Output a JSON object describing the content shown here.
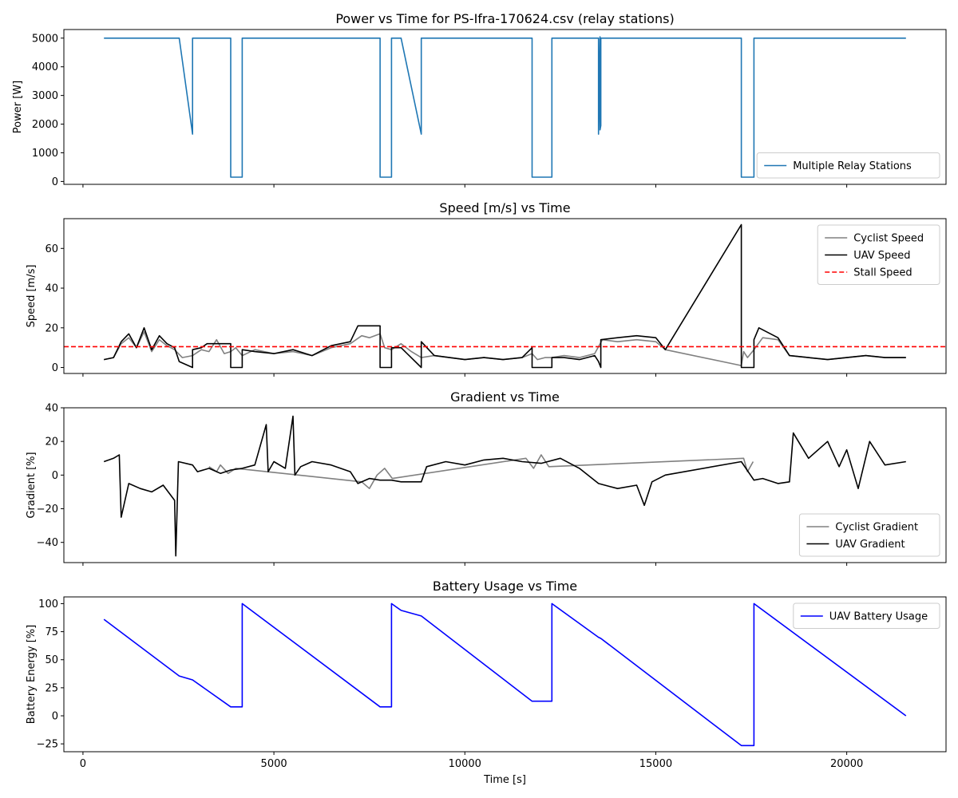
{
  "chart_data": [
    {
      "type": "line",
      "title": "Power vs Time for PS-Ifra-170624.csv (relay stations)",
      "xlabel": "",
      "ylabel": "Power [W]",
      "xlim": [
        -500,
        22600
      ],
      "ylim": [
        -100,
        5300
      ],
      "xticks": [
        0,
        5000,
        10000,
        15000,
        20000
      ],
      "show_xticklabels": false,
      "yticks": [
        0,
        1000,
        2000,
        3000,
        4000,
        5000
      ],
      "legend": "lower right",
      "series": [
        {
          "name": "Multiple Relay Stations",
          "color": "#1f77b4",
          "x": [
            550,
            2520,
            2870,
            2870,
            3870,
            3870,
            4170,
            4170,
            7780,
            7780,
            8080,
            8080,
            8330,
            8860,
            8860,
            11760,
            11760,
            12280,
            12280,
            13500,
            13500,
            13540,
            13540,
            13560,
            13560,
            17240,
            17240,
            17570,
            17570,
            21550
          ],
          "y": [
            5000,
            5000,
            1650,
            5000,
            5000,
            150,
            150,
            5000,
            5000,
            150,
            150,
            5000,
            5000,
            1650,
            5000,
            5000,
            150,
            150,
            5000,
            5000,
            1650,
            5050,
            1800,
            1950,
            5000,
            5000,
            150,
            150,
            5000,
            5000
          ]
        }
      ]
    },
    {
      "type": "line",
      "title": "Speed [m/s] vs Time",
      "xlabel": "",
      "ylabel": "Speed [m/s]",
      "xlim": [
        -500,
        22600
      ],
      "ylim": [
        -3,
        75
      ],
      "xticks": [
        0,
        5000,
        10000,
        15000,
        20000
      ],
      "show_xticklabels": false,
      "yticks": [
        0,
        20,
        40,
        60
      ],
      "legend": "upper right",
      "series": [
        {
          "name": "Cyclist Speed",
          "color": "#808080",
          "x": [
            550,
            800,
            1000,
            1200,
            1400,
            1600,
            1800,
            2000,
            2200,
            2400,
            2600,
            2870,
            3100,
            3300,
            3500,
            3700,
            3870,
            4000,
            4170,
            4500,
            5000,
            5500,
            6000,
            6500,
            7000,
            7300,
            7500,
            7780,
            7900,
            8080,
            8330,
            8600,
            8860,
            9200,
            9600,
            10000,
            10500,
            11000,
            11500,
            11760,
            11900,
            12100,
            12280,
            12600,
            13000,
            13400,
            13600,
            14000,
            14500,
            15000,
            15250,
            17240,
            17300,
            17400,
            17570,
            17800,
            18200,
            18500,
            19000,
            19500,
            20000,
            20500,
            21000,
            21550
          ],
          "y": [
            4,
            5,
            12,
            15,
            10,
            18,
            8,
            14,
            11,
            9,
            5,
            6,
            9,
            8,
            14,
            7,
            8,
            10,
            6,
            9,
            7,
            8,
            6,
            10,
            12,
            16,
            15,
            17,
            10,
            9,
            12,
            8,
            5,
            6,
            5,
            4,
            5,
            4,
            5,
            7,
            4,
            5,
            5,
            6,
            5,
            7,
            14,
            13,
            14,
            13,
            9,
            1,
            8,
            5,
            9,
            15,
            14,
            6,
            5,
            4,
            5,
            6,
            5,
            5
          ]
        },
        {
          "name": "UAV Speed",
          "color": "#000000",
          "x": [
            550,
            800,
            1000,
            1200,
            1400,
            1600,
            1800,
            2000,
            2200,
            2400,
            2520,
            2870,
            2870,
            3100,
            3250,
            3870,
            3870,
            4170,
            4170,
            4500,
            5000,
            5500,
            6000,
            6500,
            7000,
            7200,
            7300,
            7780,
            7780,
            8080,
            8080,
            8330,
            8860,
            8860,
            9200,
            9600,
            10000,
            10500,
            11000,
            11500,
            11760,
            11760,
            12280,
            12280,
            12600,
            13000,
            13400,
            13500,
            13560,
            13560,
            14000,
            14500,
            15000,
            15250,
            17240,
            17240,
            17570,
            17570,
            17700,
            18200,
            18500,
            19000,
            19500,
            20000,
            20500,
            21000,
            21550
          ],
          "y": [
            4,
            5,
            13,
            17,
            10,
            20,
            9,
            16,
            12,
            10,
            3,
            0,
            9,
            10,
            12,
            12,
            0,
            0,
            9,
            8,
            7,
            9,
            6,
            11,
            13,
            21,
            21,
            21,
            0,
            0,
            10,
            10,
            0,
            13,
            6,
            5,
            4,
            5,
            4,
            5,
            10,
            0,
            0,
            5,
            5,
            4,
            6,
            3,
            0,
            14,
            15,
            16,
            15,
            9,
            72,
            0,
            0,
            14,
            20,
            15,
            6,
            5,
            4,
            5,
            6,
            5,
            5
          ]
        },
        {
          "name": "Stall Speed",
          "color": "#ff0000",
          "dashed": true,
          "hline": 10.5
        }
      ]
    },
    {
      "type": "line",
      "title": "Gradient vs Time",
      "xlabel": "",
      "ylabel": "Gradient [%]",
      "xlim": [
        -500,
        22600
      ],
      "ylim": [
        -52,
        40
      ],
      "xticks": [
        0,
        5000,
        10000,
        15000,
        20000
      ],
      "show_xticklabels": false,
      "yticks": [
        -40,
        -20,
        0,
        20,
        40
      ],
      "legend": "lower right",
      "series": [
        {
          "name": "Cyclist Gradient",
          "color": "#808080",
          "x": [
            3300,
            3500,
            3600,
            3800,
            4000,
            7300,
            7500,
            7700,
            7900,
            8100,
            11600,
            11800,
            12000,
            12200,
            17300,
            17400,
            17550
          ],
          "y": [
            5,
            2,
            6,
            1,
            4,
            -4,
            -8,
            0,
            4,
            -2,
            10,
            4,
            12,
            5,
            10,
            2,
            8
          ]
        },
        {
          "name": "UAV Gradient",
          "color": "#000000",
          "x": [
            550,
            800,
            950,
            1000,
            1200,
            1500,
            1800,
            2100,
            2400,
            2430,
            2500,
            2870,
            3000,
            3300,
            3600,
            3870,
            4170,
            4500,
            4800,
            4850,
            5000,
            5300,
            5500,
            5550,
            5700,
            6000,
            6500,
            7000,
            7200,
            7500,
            7780,
            8080,
            8330,
            8860,
            9000,
            9500,
            10000,
            10500,
            11000,
            11500,
            12000,
            12500,
            13000,
            13500,
            14000,
            14500,
            14700,
            14900,
            15250,
            17240,
            17570,
            17800,
            18200,
            18500,
            18600,
            19000,
            19500,
            19800,
            20000,
            20300,
            20600,
            21000,
            21550
          ],
          "y": [
            8,
            10,
            12,
            -25,
            -5,
            -8,
            -10,
            -6,
            -15,
            -48,
            8,
            6,
            2,
            4,
            1,
            3,
            4,
            6,
            30,
            2,
            8,
            4,
            35,
            0,
            5,
            8,
            6,
            2,
            -5,
            -2,
            -3,
            -3,
            -4,
            -4,
            5,
            8,
            6,
            9,
            10,
            8,
            7,
            10,
            4,
            -5,
            -8,
            -6,
            -18,
            -4,
            0,
            8,
            -3,
            -2,
            -5,
            -4,
            25,
            10,
            20,
            5,
            15,
            -8,
            20,
            6,
            8
          ]
        }
      ]
    },
    {
      "type": "line",
      "title": "Battery Usage vs Time",
      "xlabel": "Time [s]",
      "ylabel": "Battery Energy [%]",
      "xlim": [
        -500,
        22600
      ],
      "ylim": [
        -32,
        106
      ],
      "xticks": [
        0,
        5000,
        10000,
        15000,
        20000
      ],
      "show_xticklabels": true,
      "yticks": [
        -25,
        0,
        25,
        50,
        75,
        100
      ],
      "legend": "upper right",
      "series": [
        {
          "name": "UAV Battery Usage",
          "color": "#0000ff",
          "x": [
            550,
            2520,
            2870,
            3870,
            4170,
            4170,
            7780,
            8080,
            8080,
            8330,
            8860,
            11760,
            12280,
            12280,
            13500,
            13560,
            17240,
            17570,
            17570,
            21550
          ],
          "y": [
            86,
            35.5,
            32,
            8,
            8,
            100,
            8,
            8,
            100,
            94,
            89,
            13,
            13,
            100,
            70,
            69,
            -26.5,
            -26.5,
            100,
            0
          ]
        }
      ]
    }
  ]
}
